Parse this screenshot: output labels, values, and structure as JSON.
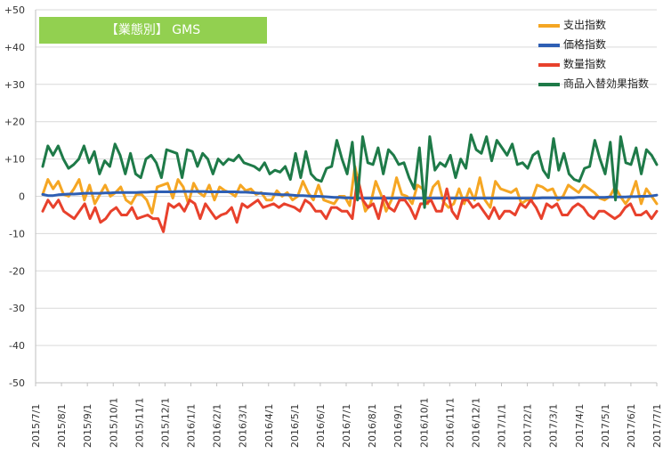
{
  "title": "【業態別】 GMS",
  "colors": {
    "title_bg": "#92d050",
    "grid": "#d9d9d9",
    "axis": "#bfbfbf"
  },
  "chart_data": {
    "type": "line",
    "x_ticks": [
      "2015/7/1",
      "2015/8/1",
      "2015/9/1",
      "2015/10/1",
      "2015/11/1",
      "2015/12/1",
      "2016/1/1",
      "2016/2/1",
      "2016/3/1",
      "2016/4/1",
      "2016/5/1",
      "2016/6/1",
      "2016/7/1",
      "2016/8/1",
      "2016/9/1",
      "2016/10/1",
      "2016/11/1",
      "2016/12/1",
      "2017/1/1",
      "2017/2/1",
      "2017/3/1",
      "2017/4/1",
      "2017/5/1",
      "2017/6/1",
      "2017/7/1"
    ],
    "y_ticks": [
      "+50",
      "+40",
      "+30",
      "+20",
      "+10",
      "0",
      "-10",
      "-20",
      "-30",
      "-40",
      "-50"
    ],
    "ylim": [
      -50,
      50
    ],
    "grid": true,
    "legend_position": "top-right",
    "series": [
      {
        "name": "支出指数",
        "color": "#f5a623",
        "values": [
          0.5,
          4.5,
          2,
          4,
          0.5,
          0,
          2,
          4.5,
          -1,
          3,
          -2,
          0.5,
          3,
          0,
          1,
          2.5,
          -1,
          -2,
          0.5,
          0.5,
          -1,
          -4.5,
          2.5,
          3,
          3.5,
          -0.5,
          4.5,
          2.5,
          -2,
          3.5,
          1,
          0,
          3,
          -1,
          2.5,
          1.5,
          1,
          0,
          3,
          1.5,
          2,
          0.5,
          1,
          -1,
          -1,
          1.5,
          0,
          1,
          -1,
          0,
          4,
          1,
          -1,
          3,
          -1,
          -1.5,
          -2,
          0,
          0,
          -2.5,
          8,
          2,
          -4,
          -2,
          4,
          0.5,
          -4,
          -1,
          5,
          0.5,
          0,
          -2,
          3,
          2,
          -2,
          2.5,
          4,
          -1.5,
          -3,
          -2,
          2,
          -2,
          2,
          -1,
          5,
          -1,
          -3,
          4,
          2,
          1.5,
          1,
          2,
          -2,
          -1,
          -1,
          3,
          2.5,
          1.5,
          2,
          -1,
          0,
          3,
          2,
          1,
          3,
          2,
          1,
          -0.5,
          -1,
          0,
          2.5,
          0,
          -2,
          0,
          4,
          -2,
          2,
          0,
          -2
        ]
      },
      {
        "name": "価格指数",
        "color": "#2e5fb4",
        "values": [
          0.5,
          0.2,
          0.2,
          0.4,
          0.5,
          0.6,
          0.6,
          0.7,
          0.8,
          0.8,
          0.8,
          0.8,
          0.9,
          0.9,
          1,
          1,
          1,
          1,
          1,
          1.1,
          1.1,
          1.2,
          1.2,
          1.2,
          1.2,
          1.2,
          1.3,
          1.3,
          1.3,
          1.3,
          1.3,
          1.3,
          1.2,
          1.2,
          1.2,
          1.2,
          1.2,
          1.2,
          1.1,
          1.1,
          1,
          0.9,
          0.8,
          0.7,
          0.6,
          0.5,
          0.4,
          0.4,
          0.3,
          0.2,
          0.2,
          0.1,
          0,
          0,
          -0.1,
          -0.2,
          -0.3,
          -0.3,
          -0.4,
          -0.4,
          -0.5,
          -0.5,
          -0.5,
          -0.5,
          -0.5,
          -0.5,
          -0.5,
          -0.5,
          -0.5,
          -0.5,
          -0.5,
          -0.5,
          -0.5,
          -0.5,
          -0.5,
          -0.5,
          -0.5,
          -0.5,
          -0.5,
          -0.5,
          -0.5,
          -0.5,
          -0.5,
          -0.5,
          -0.5,
          -0.5,
          -0.5,
          -0.5,
          -0.5,
          -0.5,
          -0.5,
          -0.5,
          -0.5,
          -0.5,
          -0.5,
          -0.5,
          -0.4,
          -0.4,
          -0.4,
          -0.4,
          -0.4,
          -0.4,
          -0.4,
          -0.3,
          -0.3,
          -0.3,
          -0.3,
          -0.3,
          -0.3,
          -0.2,
          -0.2,
          -0.2,
          -0.2,
          -0.1,
          -0.1,
          0,
          0,
          0.1,
          0.3
        ]
      },
      {
        "name": "数量指数",
        "color": "#e8412c",
        "values": [
          -4,
          -1,
          -3,
          -1,
          -4,
          -5,
          -6,
          -4,
          -2,
          -6,
          -3,
          -7,
          -6,
          -4,
          -3,
          -5,
          -5,
          -3,
          -6,
          -5.5,
          -5,
          -6,
          -6,
          -9.5,
          -2,
          -3,
          -2,
          -4,
          -1,
          -2,
          -6,
          -2,
          -4,
          -6,
          -5,
          -4.5,
          -3,
          -7,
          -2,
          -3,
          -2,
          -1,
          -3,
          -2.5,
          -2,
          -3,
          -2,
          -2.5,
          -3,
          -4,
          -1,
          -2,
          -4,
          -4,
          -6,
          -3,
          -3,
          -4,
          -4,
          -6,
          5,
          -1,
          -3,
          -2,
          -6,
          0,
          -3,
          -4,
          -1,
          -1,
          -3,
          -6,
          -2,
          -2,
          -1,
          -4,
          -4,
          2,
          -4,
          -6,
          -1,
          -1,
          -3,
          -2,
          -4,
          -6,
          -3,
          -6,
          -4,
          -4,
          -5,
          -2,
          -3,
          -1,
          -3,
          -6,
          -2,
          -3,
          -2,
          -5,
          -5,
          -3,
          -2,
          -3,
          -5,
          -6,
          -4,
          -4,
          -5,
          -6,
          -5,
          -3,
          -2,
          -5,
          -5,
          -4,
          -6,
          -4
        ]
      },
      {
        "name": "商品入替効果指数",
        "color": "#1e7a48",
        "values": [
          8,
          13.5,
          11,
          13.5,
          10,
          7.5,
          8.5,
          10,
          13.5,
          9,
          12,
          6,
          9.5,
          8,
          14,
          11,
          6,
          11.5,
          6,
          5,
          10,
          11,
          9,
          5,
          12.5,
          12,
          11.5,
          5,
          12.5,
          12,
          8,
          11.5,
          10,
          6,
          10,
          8.5,
          10,
          9.5,
          11,
          9,
          8.5,
          8,
          7,
          9,
          6,
          7,
          6.5,
          8,
          4.5,
          11.5,
          5,
          12,
          6,
          4.5,
          4,
          7.5,
          8,
          15,
          10,
          6,
          14.5,
          -1,
          16,
          9,
          8.5,
          13,
          6,
          12.5,
          11,
          8.5,
          9,
          5,
          2,
          13,
          -3,
          16,
          7,
          9,
          8,
          11,
          5,
          10,
          7.5,
          16.5,
          12.5,
          11.5,
          16,
          9.5,
          15,
          13,
          11,
          14,
          8.5,
          9,
          7.5,
          11,
          12,
          7,
          5,
          15.5,
          7,
          11.5,
          6,
          4.5,
          4,
          7.5,
          8,
          15,
          10,
          6,
          14.5,
          -1,
          16,
          9,
          8.5,
          13,
          6,
          12.5,
          11,
          8.5
        ]
      }
    ]
  }
}
